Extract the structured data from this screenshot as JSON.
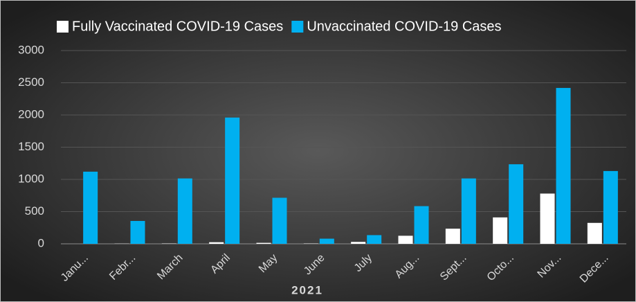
{
  "chart_data": {
    "type": "bar",
    "categories": [
      "Janu...",
      "Febr...",
      "March",
      "April",
      "May",
      "June",
      "July",
      "Aug...",
      "Sept...",
      "Octo...",
      "Nov...",
      "Dece..."
    ],
    "series": [
      {
        "name": "Fully Vaccinated COVID-19 Cases",
        "color": "#ffffff",
        "values": [
          0,
          3,
          5,
          25,
          15,
          5,
          30,
          125,
          235,
          410,
          780,
          325
        ]
      },
      {
        "name": "Unvaccinated COVID-19 Cases",
        "color": "#00b0f0",
        "values": [
          1120,
          355,
          1015,
          1960,
          715,
          80,
          135,
          585,
          1015,
          1235,
          2420,
          1130
        ]
      }
    ],
    "x_label": "2021",
    "ylim": [
      0,
      3000
    ],
    "yticks": [
      0,
      500,
      1000,
      1500,
      2000,
      2500,
      3000
    ],
    "grid": true,
    "legend": "top"
  }
}
